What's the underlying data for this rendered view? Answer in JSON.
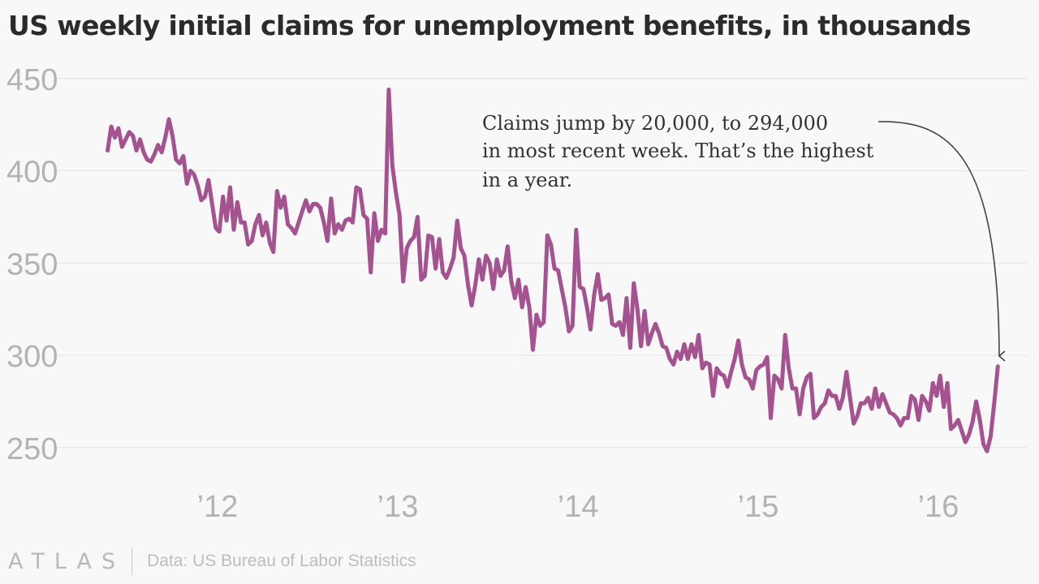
{
  "title": "US weekly initial claims for unemployment benefits, in thousands",
  "annotation": {
    "lines": [
      "Claims jump by 20,000, to 294,000",
      "in most recent week. That’s the highest",
      "in a year."
    ]
  },
  "footer": {
    "logo": "ATLAS",
    "source": "Data: US Bureau of Labor Statistics"
  },
  "colors": {
    "line": "#a45390",
    "grid": "#e3e3e3",
    "tick_text": "#b3b3b3",
    "annotation_text": "#333333",
    "arrow": "#444444"
  },
  "chart_data": {
    "type": "line",
    "title": "US weekly initial claims for unemployment benefits, in thousands",
    "xlabel": "",
    "ylabel": "",
    "ylim": [
      240,
      455
    ],
    "y_ticks": [
      250,
      300,
      350,
      400,
      450
    ],
    "x_tick_labels": [
      "’12",
      "’13",
      "’14",
      "’15",
      "’16"
    ],
    "x_tick_years": [
      2012,
      2013,
      2014,
      2015,
      2016
    ],
    "x_range": [
      2011,
      2016.6
    ],
    "grid": true,
    "series": [
      {
        "x": [
          2011.39,
          2011.41,
          2011.43,
          2011.45,
          2011.47,
          2011.49,
          2011.51,
          2011.53,
          2011.55,
          2011.57,
          2011.59,
          2011.61,
          2011.63,
          2011.65,
          2011.67,
          2011.69,
          2011.71,
          2011.73,
          2011.75,
          2011.77,
          2011.79,
          2011.81,
          2011.83,
          2011.85,
          2011.87,
          2011.89,
          2011.91,
          2011.93,
          2011.95,
          2011.97,
          2011.99,
          2012.01,
          2012.03,
          2012.05,
          2012.07,
          2012.09,
          2012.11,
          2012.13,
          2012.15,
          2012.17,
          2012.19,
          2012.21,
          2012.23,
          2012.25,
          2012.27,
          2012.29,
          2012.31,
          2012.33,
          2012.35,
          2012.37,
          2012.39,
          2012.41,
          2012.43,
          2012.45,
          2012.47,
          2012.49,
          2012.51,
          2012.53,
          2012.55,
          2012.57,
          2012.59,
          2012.61,
          2012.63,
          2012.65,
          2012.67,
          2012.69,
          2012.71,
          2012.73,
          2012.75,
          2012.77,
          2012.79,
          2012.81,
          2012.83,
          2012.85,
          2012.87,
          2012.89,
          2012.91,
          2012.93,
          2012.95,
          2012.97,
          2012.99,
          2013.01,
          2013.03,
          2013.05,
          2013.07,
          2013.09,
          2013.11,
          2013.13,
          2013.15,
          2013.17,
          2013.19,
          2013.21,
          2013.23,
          2013.25,
          2013.27,
          2013.29,
          2013.31,
          2013.33,
          2013.35,
          2013.37,
          2013.39,
          2013.41,
          2013.43,
          2013.45,
          2013.47,
          2013.49,
          2013.51,
          2013.53,
          2013.55,
          2013.57,
          2013.59,
          2013.61,
          2013.63,
          2013.65,
          2013.67,
          2013.69,
          2013.71,
          2013.73,
          2013.75,
          2013.77,
          2013.79,
          2013.81,
          2013.83,
          2013.85,
          2013.87,
          2013.89,
          2013.91,
          2013.93,
          2013.95,
          2013.97,
          2013.99,
          2014.01,
          2014.03,
          2014.05,
          2014.07,
          2014.09,
          2014.11,
          2014.13,
          2014.15,
          2014.17,
          2014.19,
          2014.21,
          2014.23,
          2014.25,
          2014.27,
          2014.29,
          2014.31,
          2014.33,
          2014.35,
          2014.37,
          2014.39,
          2014.41,
          2014.43,
          2014.45,
          2014.47,
          2014.49,
          2014.51,
          2014.53,
          2014.55,
          2014.57,
          2014.59,
          2014.61,
          2014.63,
          2014.65,
          2014.67,
          2014.69,
          2014.71,
          2014.73,
          2014.75,
          2014.77,
          2014.79,
          2014.81,
          2014.83,
          2014.85,
          2014.87,
          2014.89,
          2014.91,
          2014.93,
          2014.95,
          2014.97,
          2014.99,
          2015.01,
          2015.03,
          2015.05,
          2015.07,
          2015.09,
          2015.11,
          2015.13,
          2015.15,
          2015.17,
          2015.19,
          2015.21,
          2015.23,
          2015.25,
          2015.27,
          2015.29,
          2015.31,
          2015.33,
          2015.35,
          2015.37,
          2015.39,
          2015.41,
          2015.43,
          2015.45,
          2015.47,
          2015.49,
          2015.51,
          2015.53,
          2015.55,
          2015.57,
          2015.59,
          2015.61,
          2015.63,
          2015.65,
          2015.67,
          2015.69,
          2015.71,
          2015.73,
          2015.75,
          2015.77,
          2015.79,
          2015.81,
          2015.83,
          2015.85,
          2015.87,
          2015.89,
          2015.91,
          2015.93,
          2015.95,
          2015.97,
          2015.99,
          2016.01,
          2016.03,
          2016.05,
          2016.07,
          2016.09,
          2016.11,
          2016.13,
          2016.15,
          2016.17,
          2016.19,
          2016.21,
          2016.23,
          2016.25,
          2016.27,
          2016.29,
          2016.31,
          2016.33
        ],
        "values": [
          411,
          424,
          418,
          423,
          413,
          417,
          421,
          419,
          411,
          417,
          410,
          406,
          405,
          409,
          414,
          410,
          418,
          428,
          419,
          406,
          404,
          408,
          393,
          400,
          398,
          392,
          384,
          386,
          395,
          382,
          369,
          367,
          386,
          373,
          391,
          368,
          383,
          372,
          372,
          360,
          362,
          371,
          376,
          365,
          372,
          361,
          356,
          389,
          380,
          386,
          371,
          369,
          366,
          372,
          378,
          384,
          378,
          382,
          382,
          380,
          372,
          362,
          385,
          366,
          371,
          368,
          373,
          374,
          372,
          391,
          390,
          376,
          374,
          345,
          377,
          362,
          368,
          366,
          444,
          403,
          388,
          376,
          340,
          358,
          362,
          364,
          375,
          341,
          343,
          365,
          364,
          347,
          363,
          345,
          342,
          347,
          353,
          373,
          358,
          354,
          338,
          327,
          338,
          352,
          341,
          354,
          350,
          336,
          352,
          343,
          346,
          359,
          340,
          331,
          341,
          326,
          337,
          326,
          303,
          322,
          316,
          318,
          365,
          360,
          347,
          346,
          336,
          326,
          313,
          316,
          368,
          337,
          336,
          326,
          314,
          333,
          344,
          330,
          331,
          333,
          317,
          316,
          318,
          311,
          331,
          304,
          339,
          325,
          305,
          324,
          306,
          312,
          317,
          312,
          305,
          304,
          298,
          295,
          302,
          298,
          306,
          298,
          306,
          299,
          311,
          293,
          296,
          295,
          278,
          293,
          290,
          289,
          283,
          291,
          298,
          308,
          295,
          288,
          287,
          282,
          292,
          294,
          295,
          299,
          266,
          289,
          287,
          282,
          311,
          293,
          282,
          282,
          268,
          282,
          288,
          290,
          266,
          268,
          272,
          274,
          281,
          278,
          278,
          271,
          277,
          291,
          277,
          263,
          267,
          274,
          274,
          277,
          271,
          282,
          272,
          279,
          274,
          269,
          268,
          266,
          262,
          266,
          266,
          278,
          276,
          265,
          278,
          275,
          270,
          285,
          278,
          289,
          272,
          285,
          260,
          262,
          265,
          259,
          253,
          257,
          264,
          275,
          265,
          252,
          248,
          256,
          274,
          294
        ]
      }
    ]
  }
}
